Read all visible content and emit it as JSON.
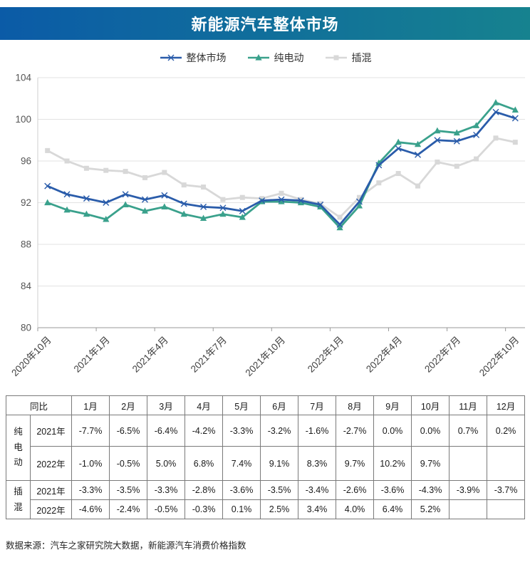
{
  "header": {
    "title": "新能源汽车整体市场",
    "gradient_start": "#0b5ba7",
    "gradient_end": "#16828f"
  },
  "chart_data": {
    "type": "line",
    "x": [
      "2020年10月",
      "2020年11月",
      "2020年12月",
      "2021年1月",
      "2021年2月",
      "2021年3月",
      "2021年4月",
      "2021年5月",
      "2021年6月",
      "2021年7月",
      "2021年8月",
      "2021年9月",
      "2021年10月",
      "2021年11月",
      "2021年12月",
      "2022年1月",
      "2022年2月",
      "2022年3月",
      "2022年4月",
      "2022年5月",
      "2022年6月",
      "2022年7月",
      "2022年8月",
      "2022年9月",
      "2022年10月"
    ],
    "x_tick_labels": [
      "2020年10月",
      "2021年1月",
      "2021年4月",
      "2021年7月",
      "2021年10月",
      "2022年1月",
      "2022年4月",
      "2022年7月",
      "2022年10月"
    ],
    "series": [
      {
        "key": "overall",
        "name": "整体市场",
        "color": "#2a5caa",
        "marker": "x",
        "values": [
          93.6,
          92.8,
          92.4,
          92.0,
          92.8,
          92.3,
          92.7,
          91.9,
          91.6,
          91.5,
          91.2,
          92.2,
          92.3,
          92.2,
          91.8,
          89.9,
          92.1,
          95.6,
          97.2,
          96.6,
          98.0,
          97.9,
          98.5,
          100.7,
          100.1
        ]
      },
      {
        "key": "bev",
        "name": "纯电动",
        "color": "#3aa18c",
        "marker": "triangle",
        "values": [
          92.0,
          91.3,
          90.9,
          90.4,
          91.8,
          91.2,
          91.6,
          90.9,
          90.5,
          90.9,
          90.6,
          92.1,
          92.1,
          92.0,
          91.6,
          89.6,
          91.7,
          95.8,
          97.8,
          97.6,
          98.9,
          98.7,
          99.4,
          101.6,
          100.9
        ]
      },
      {
        "key": "phev",
        "name": "插混",
        "color": "#d8d8d8",
        "marker": "square",
        "values": [
          97.0,
          96.0,
          95.3,
          95.1,
          95.0,
          94.4,
          94.9,
          93.7,
          93.5,
          92.3,
          92.5,
          92.4,
          92.9,
          92.3,
          91.9,
          90.6,
          92.5,
          93.9,
          94.8,
          93.6,
          95.9,
          95.5,
          96.2,
          98.2,
          97.8
        ]
      }
    ],
    "ylim": [
      80,
      104
    ],
    "yticks": [
      80,
      84,
      88,
      92,
      96,
      100,
      104
    ],
    "grid": true,
    "legend_position": "top"
  },
  "table": {
    "corner_label": "同比",
    "month_headers": [
      "1月",
      "2月",
      "3月",
      "4月",
      "5月",
      "6月",
      "7月",
      "8月",
      "9月",
      "10月",
      "11月",
      "12月"
    ],
    "groups": [
      {
        "key": "bev",
        "label": "纯电动",
        "rows": [
          {
            "year": "2021年",
            "values": [
              "-7.7%",
              "-6.5%",
              "-6.4%",
              "-4.2%",
              "-3.3%",
              "-3.2%",
              "-1.6%",
              "-2.7%",
              "0.0%",
              "0.0%",
              "0.7%",
              "0.2%"
            ]
          },
          {
            "year": "2022年",
            "values": [
              "-1.0%",
              "-0.5%",
              "5.0%",
              "6.8%",
              "7.4%",
              "9.1%",
              "8.3%",
              "9.7%",
              "10.2%",
              "9.7%",
              "",
              ""
            ]
          }
        ]
      },
      {
        "key": "phev",
        "label": "插混",
        "rows": [
          {
            "year": "2021年",
            "values": [
              "-3.3%",
              "-3.5%",
              "-3.3%",
              "-2.8%",
              "-3.6%",
              "-3.5%",
              "-3.4%",
              "-2.6%",
              "-3.6%",
              "-4.3%",
              "-3.9%",
              "-3.7%"
            ]
          },
          {
            "year": "2022年",
            "values": [
              "-4.6%",
              "-2.4%",
              "-0.5%",
              "-0.3%",
              "0.1%",
              "2.5%",
              "3.4%",
              "4.0%",
              "6.4%",
              "5.2%",
              "",
              ""
            ]
          }
        ]
      }
    ]
  },
  "footer": {
    "source": "数据来源：汽车之家研究院大数据，新能源汽车消费价格指数"
  }
}
